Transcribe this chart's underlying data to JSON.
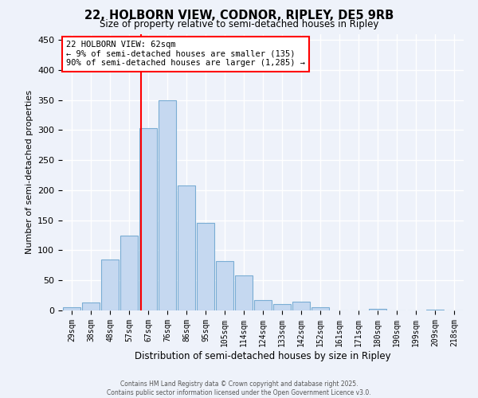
{
  "title": "22, HOLBORN VIEW, CODNOR, RIPLEY, DE5 9RB",
  "subtitle": "Size of property relative to semi-detached houses in Ripley",
  "xlabel": "Distribution of semi-detached houses by size in Ripley",
  "ylabel": "Number of semi-detached properties",
  "bar_color": "#c5d8f0",
  "bar_edge_color": "#7aadd4",
  "categories": [
    "29sqm",
    "38sqm",
    "48sqm",
    "57sqm",
    "67sqm",
    "76sqm",
    "86sqm",
    "95sqm",
    "105sqm",
    "114sqm",
    "124sqm",
    "133sqm",
    "142sqm",
    "152sqm",
    "161sqm",
    "171sqm",
    "180sqm",
    "190sqm",
    "199sqm",
    "209sqm",
    "218sqm"
  ],
  "values": [
    5,
    13,
    85,
    125,
    303,
    350,
    208,
    145,
    82,
    58,
    17,
    10,
    15,
    5,
    0,
    0,
    3,
    0,
    0,
    1,
    0
  ],
  "ylim": [
    0,
    460
  ],
  "yticks": [
    0,
    50,
    100,
    150,
    200,
    250,
    300,
    350,
    400,
    450
  ],
  "vline_x": 3.62,
  "annotation_text": "22 HOLBORN VIEW: 62sqm\n← 9% of semi-detached houses are smaller (135)\n90% of semi-detached houses are larger (1,285) →",
  "annotation_box_color": "white",
  "annotation_box_edge_color": "red",
  "vline_color": "red",
  "background_color": "#eef2fa",
  "grid_color": "white",
  "footer_line1": "Contains HM Land Registry data © Crown copyright and database right 2025.",
  "footer_line2": "Contains public sector information licensed under the Open Government Licence v3.0."
}
